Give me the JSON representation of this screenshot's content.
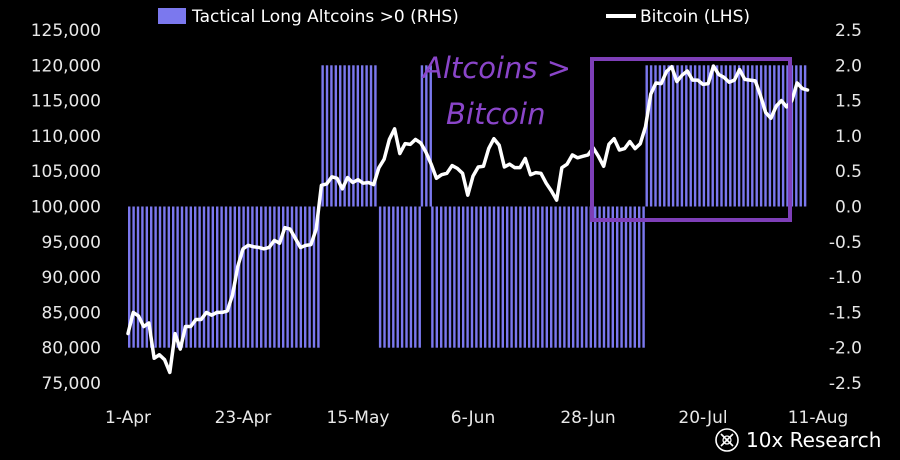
{
  "legend": {
    "altcoins_label": "Tactical Long Altcoins >0 (RHS)",
    "bitcoin_label": "Bitcoin (LHS)"
  },
  "annotation": {
    "line1": "Altcoins >",
    "line2": "Bitcoin"
  },
  "brand": {
    "name": "10x Research",
    "icon": "10x-research-logo-icon"
  },
  "colors": {
    "background": "#000000",
    "bars": "#7b78ee",
    "line": "#ffffff",
    "highlight_box": "#7e3fb8",
    "annotation": "#8a45c9"
  },
  "chart_data": {
    "type": "line",
    "x_ticks": [
      "1-Apr",
      "23-Apr",
      "15-May",
      "6-Jun",
      "28-Jun",
      "20-Jul",
      "11-Aug"
    ],
    "x_tick_dates": [
      "2025-04-01",
      "2025-04-23",
      "2025-05-15",
      "2025-06-06",
      "2025-06-28",
      "2025-07-20",
      "2025-08-11"
    ],
    "y_left": {
      "ylim": [
        75000,
        125000
      ],
      "ticks": [
        "75,000",
        "80,000",
        "85,000",
        "90,000",
        "95,000",
        "100,000",
        "105,000",
        "110,000",
        "115,000",
        "120,000",
        "125,000"
      ],
      "tick_values": [
        75000,
        80000,
        85000,
        90000,
        95000,
        100000,
        105000,
        110000,
        115000,
        120000,
        125000
      ]
    },
    "y_right": {
      "ylim": [
        -2.5,
        2.5
      ],
      "ticks": [
        "-2.5",
        "-2.0",
        "-1.5",
        "-1.0",
        "-0.5",
        "0.0",
        "0.5",
        "1.0",
        "1.5",
        "2.0",
        "2.5"
      ],
      "tick_values": [
        -2.5,
        -2.0,
        -1.5,
        -1.0,
        -0.5,
        0.0,
        0.5,
        1.0,
        1.5,
        2.0,
        2.5
      ]
    },
    "series": [
      {
        "name": "Bitcoin (LHS)",
        "axis": "left",
        "points": [
          [
            "2025-04-01",
            82000
          ],
          [
            "2025-04-02",
            85000
          ],
          [
            "2025-04-03",
            84500
          ],
          [
            "2025-04-04",
            83000
          ],
          [
            "2025-04-05",
            83500
          ],
          [
            "2025-04-06",
            78500
          ],
          [
            "2025-04-07",
            79000
          ],
          [
            "2025-04-08",
            78300
          ],
          [
            "2025-04-09",
            76500
          ],
          [
            "2025-04-10",
            82000
          ],
          [
            "2025-04-11",
            79800
          ],
          [
            "2025-04-12",
            83000
          ],
          [
            "2025-04-13",
            83000
          ],
          [
            "2025-04-14",
            84000
          ],
          [
            "2025-04-15",
            84000
          ],
          [
            "2025-04-16",
            85000
          ],
          [
            "2025-04-17",
            84600
          ],
          [
            "2025-04-18",
            85000
          ],
          [
            "2025-04-19",
            85000
          ],
          [
            "2025-04-20",
            85200
          ],
          [
            "2025-04-21",
            87500
          ],
          [
            "2025-04-22",
            91500
          ],
          [
            "2025-04-23",
            94000
          ],
          [
            "2025-04-24",
            94500
          ],
          [
            "2025-04-25",
            94300
          ],
          [
            "2025-04-26",
            94200
          ],
          [
            "2025-04-27",
            94000
          ],
          [
            "2025-04-28",
            94200
          ],
          [
            "2025-04-29",
            95200
          ],
          [
            "2025-04-30",
            94800
          ],
          [
            "2025-05-01",
            97000
          ],
          [
            "2025-05-02",
            96800
          ],
          [
            "2025-05-03",
            95500
          ],
          [
            "2025-05-04",
            94200
          ],
          [
            "2025-05-05",
            94500
          ],
          [
            "2025-05-06",
            94600
          ],
          [
            "2025-05-07",
            96800
          ],
          [
            "2025-05-08",
            103000
          ],
          [
            "2025-05-09",
            103200
          ],
          [
            "2025-05-10",
            104200
          ],
          [
            "2025-05-11",
            104000
          ],
          [
            "2025-05-12",
            102500
          ],
          [
            "2025-05-13",
            104100
          ],
          [
            "2025-05-14",
            103400
          ],
          [
            "2025-05-15",
            103800
          ],
          [
            "2025-05-16",
            103300
          ],
          [
            "2025-05-17",
            103400
          ],
          [
            "2025-05-18",
            103100
          ],
          [
            "2025-05-19",
            105500
          ],
          [
            "2025-05-20",
            106700
          ],
          [
            "2025-05-21",
            109500
          ],
          [
            "2025-05-22",
            111000
          ],
          [
            "2025-05-23",
            107500
          ],
          [
            "2025-05-24",
            108900
          ],
          [
            "2025-05-25",
            108800
          ],
          [
            "2025-05-26",
            109500
          ],
          [
            "2025-05-27",
            109000
          ],
          [
            "2025-05-28",
            107700
          ],
          [
            "2025-05-29",
            106000
          ],
          [
            "2025-05-30",
            104000
          ],
          [
            "2025-05-31",
            104500
          ],
          [
            "2025-06-01",
            104700
          ],
          [
            "2025-06-02",
            105800
          ],
          [
            "2025-06-03",
            105400
          ],
          [
            "2025-06-04",
            104700
          ],
          [
            "2025-06-05",
            101600
          ],
          [
            "2025-06-06",
            104300
          ],
          [
            "2025-06-07",
            105600
          ],
          [
            "2025-06-08",
            105700
          ],
          [
            "2025-06-09",
            108200
          ],
          [
            "2025-06-10",
            109600
          ],
          [
            "2025-06-11",
            108700
          ],
          [
            "2025-06-12",
            105600
          ],
          [
            "2025-06-13",
            106000
          ],
          [
            "2025-06-14",
            105500
          ],
          [
            "2025-06-15",
            105500
          ],
          [
            "2025-06-16",
            106800
          ],
          [
            "2025-06-17",
            104500
          ],
          [
            "2025-06-18",
            104800
          ],
          [
            "2025-06-19",
            104700
          ],
          [
            "2025-06-20",
            103300
          ],
          [
            "2025-06-21",
            102200
          ],
          [
            "2025-06-22",
            100900
          ],
          [
            "2025-06-23",
            105500
          ],
          [
            "2025-06-24",
            106000
          ],
          [
            "2025-06-25",
            107300
          ],
          [
            "2025-06-26",
            106900
          ],
          [
            "2025-06-27",
            107100
          ],
          [
            "2025-06-28",
            107300
          ],
          [
            "2025-06-29",
            108300
          ],
          [
            "2025-06-30",
            107100
          ],
          [
            "2025-07-01",
            105700
          ],
          [
            "2025-07-02",
            108800
          ],
          [
            "2025-07-03",
            109600
          ],
          [
            "2025-07-04",
            108000
          ],
          [
            "2025-07-05",
            108200
          ],
          [
            "2025-07-06",
            109200
          ],
          [
            "2025-07-07",
            108200
          ],
          [
            "2025-07-08",
            108900
          ],
          [
            "2025-07-09",
            111300
          ],
          [
            "2025-07-10",
            115900
          ],
          [
            "2025-07-11",
            117500
          ],
          [
            "2025-07-12",
            117400
          ],
          [
            "2025-07-13",
            119100
          ],
          [
            "2025-07-14",
            119800
          ],
          [
            "2025-07-15",
            117700
          ],
          [
            "2025-07-16",
            118600
          ],
          [
            "2025-07-17",
            119200
          ],
          [
            "2025-07-18",
            117900
          ],
          [
            "2025-07-19",
            117900
          ],
          [
            "2025-07-20",
            117300
          ],
          [
            "2025-07-21",
            117400
          ],
          [
            "2025-07-22",
            119900
          ],
          [
            "2025-07-23",
            118700
          ],
          [
            "2025-07-24",
            118300
          ],
          [
            "2025-07-25",
            117600
          ],
          [
            "2025-07-26",
            117900
          ],
          [
            "2025-07-27",
            119400
          ],
          [
            "2025-07-28",
            118000
          ],
          [
            "2025-07-29",
            117900
          ],
          [
            "2025-07-30",
            117800
          ],
          [
            "2025-07-31",
            115700
          ],
          [
            "2025-08-01",
            113300
          ],
          [
            "2025-08-02",
            112500
          ],
          [
            "2025-08-03",
            114200
          ],
          [
            "2025-08-04",
            115000
          ],
          [
            "2025-08-05",
            114100
          ],
          [
            "2025-08-06",
            115000
          ],
          [
            "2025-08-07",
            117500
          ],
          [
            "2025-08-08",
            116700
          ],
          [
            "2025-08-09",
            116500
          ]
        ]
      },
      {
        "name": "Tactical Long Altcoins >0 (RHS)",
        "axis": "right",
        "type": "bar",
        "segments": [
          {
            "from": "2025-04-01",
            "to": "2025-05-07",
            "value": -2.0
          },
          {
            "from": "2025-05-08",
            "to": "2025-05-18",
            "value": 2.0
          },
          {
            "from": "2025-05-19",
            "to": "2025-05-26",
            "value": -2.0
          },
          {
            "from": "2025-05-27",
            "to": "2025-05-28",
            "value": 2.0
          },
          {
            "from": "2025-05-29",
            "to": "2025-07-08",
            "value": -2.0
          },
          {
            "from": "2025-07-09",
            "to": "2025-08-08",
            "value": 2.0
          }
        ]
      }
    ],
    "grid": false
  }
}
